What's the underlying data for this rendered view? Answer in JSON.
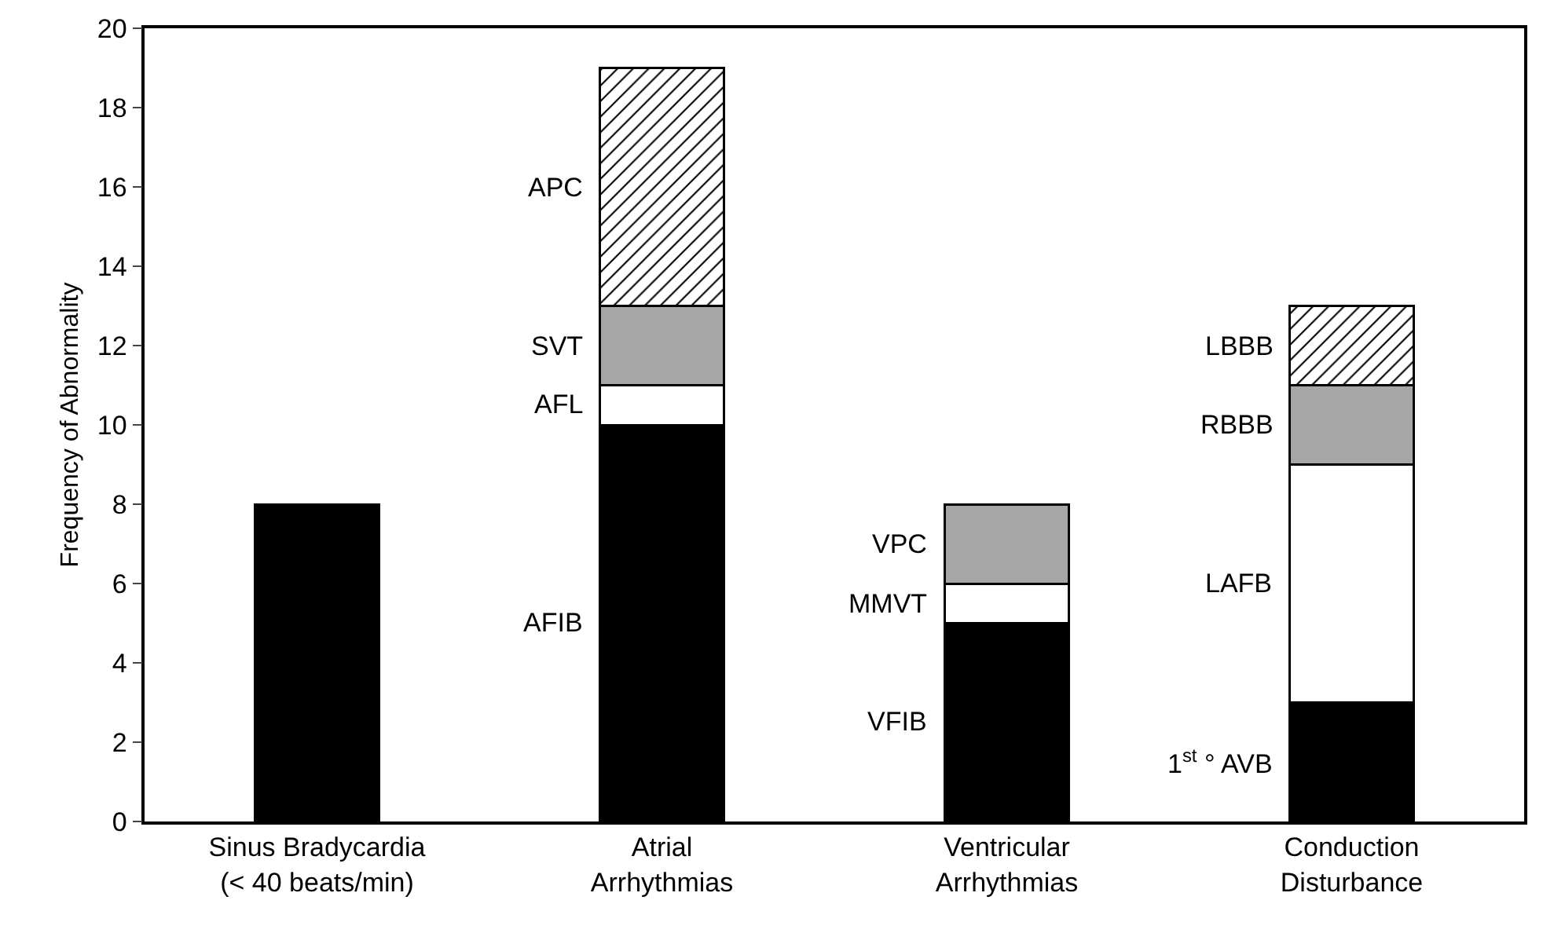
{
  "chart_data": {
    "type": "bar",
    "stacked": true,
    "ylabel": "Frequency of Abnormality",
    "categories": [
      "Sinus Bradycardia\n(< 40 beats/min)",
      "Atrial\nArrhythmias",
      "Ventricular\nArrhythmias",
      "Conduction\nDisturbance"
    ],
    "series": [
      {
        "color": "#000000",
        "values": [
          8,
          10,
          5,
          3
        ]
      },
      {
        "color": "#ffffff",
        "values": [
          null,
          1,
          1,
          6
        ]
      },
      {
        "color": "#a6a6a6",
        "values": [
          null,
          2,
          2,
          2
        ]
      },
      {
        "color": "#000000",
        "values": [
          null,
          6,
          null,
          2
        ]
      }
    ],
    "ylim": [
      0,
      20
    ],
    "yticks": [
      0,
      2,
      4,
      6,
      8,
      10,
      12,
      14,
      16,
      18,
      20
    ],
    "grid": false,
    "legend": false,
    "annotations": [
      "AFIB",
      "AFL",
      "SVT",
      "APC",
      "VFIB",
      "MMVT",
      "VPC",
      "1$^{st}$ ° AVB",
      "LAFB",
      "RBBB",
      "LBBB"
    ]
  }
}
